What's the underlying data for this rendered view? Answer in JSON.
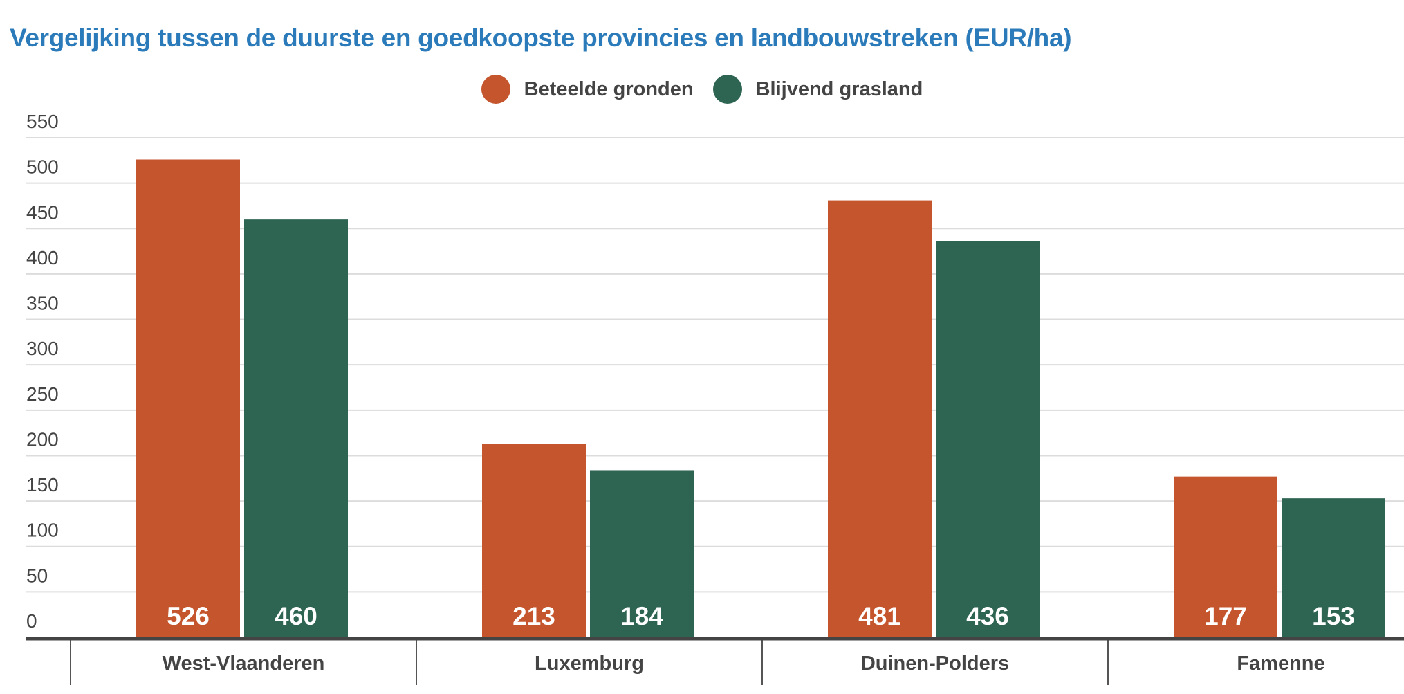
{
  "chart_data": {
    "type": "bar",
    "title": "Vergelijking tussen de duurste en goedkoopste provincies en landbouwstreken (EUR/ha)",
    "categories": [
      "West-Vlaanderen",
      "Luxemburg",
      "Duinen-Polders",
      "Famenne"
    ],
    "series": [
      {
        "name": "Beteelde gronden",
        "color": "#c4552d",
        "values": [
          526,
          213,
          481,
          177
        ]
      },
      {
        "name": "Blijvend grasland",
        "color": "#2e6452",
        "values": [
          460,
          184,
          436,
          153
        ]
      }
    ],
    "ylim": [
      0,
      550
    ],
    "yticks": [
      0,
      50,
      100,
      150,
      200,
      250,
      300,
      350,
      400,
      450,
      500,
      550
    ],
    "grid": true,
    "legend": "top-center",
    "data_labels": "inside-bottom"
  }
}
